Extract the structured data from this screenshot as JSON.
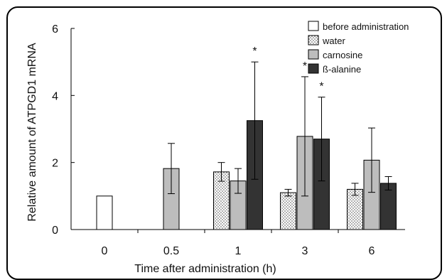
{
  "chart_data": {
    "type": "bar",
    "categories": [
      "0",
      "0.5",
      "1",
      "3",
      "6"
    ],
    "xlabel": "Time after administration (h)",
    "ylabel": "Relative amount of ATPGD1 mRNA",
    "ylim": [
      0,
      6
    ],
    "yticks": [
      "0",
      "2",
      "4",
      "6"
    ],
    "legend_position": "top-right",
    "series": [
      {
        "name": "before administration",
        "fill": "#ffffff",
        "pattern": "none",
        "values": [
          1.0,
          null,
          null,
          null,
          null
        ],
        "errors": [
          0,
          null,
          null,
          null,
          null
        ]
      },
      {
        "name": "water",
        "fill": "#ffffff",
        "pattern": "dots",
        "values": [
          null,
          null,
          1.72,
          1.1,
          1.2
        ],
        "errors": [
          null,
          null,
          0.28,
          0.1,
          0.18
        ]
      },
      {
        "name": "carnosine",
        "fill": "#bdbdbd",
        "pattern": "none",
        "values": [
          null,
          1.82,
          1.45,
          2.78,
          2.07
        ],
        "errors": [
          null,
          0.75,
          0.37,
          1.78,
          0.96
        ]
      },
      {
        "name": "ß-alanine",
        "fill": "#333333",
        "pattern": "none",
        "values": [
          null,
          null,
          3.25,
          2.7,
          1.38
        ],
        "errors": [
          null,
          null,
          1.75,
          1.25,
          0.2
        ]
      }
    ],
    "annotations": [
      {
        "text": "*",
        "category": "1",
        "series": "ß-alanine"
      },
      {
        "text": "*",
        "category": "3",
        "series": "carnosine"
      },
      {
        "text": "*",
        "category": "3",
        "series": "ß-alanine"
      }
    ]
  }
}
